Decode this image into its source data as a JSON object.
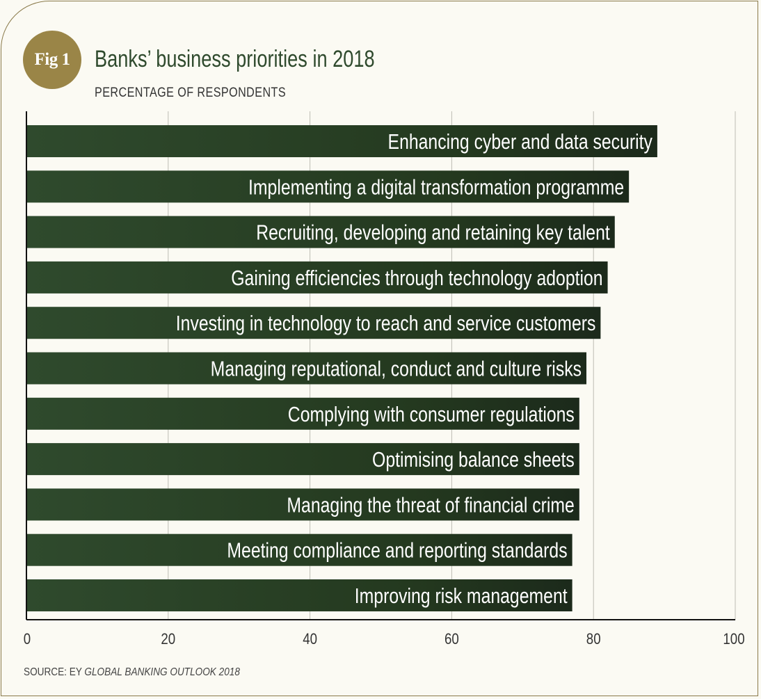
{
  "badge": {
    "label": "Fig 1"
  },
  "header": {
    "title": "Banks’ business priorities in 2018",
    "subtitle": "PERCENTAGE OF RESPONDENTS"
  },
  "source": {
    "prefix": "SOURCE: EY ",
    "publication": "GLOBAL BANKING OUTLOOK 2018"
  },
  "colors": {
    "bar_dark": "#1c2a1b",
    "bar_green": "#2f4a2d",
    "title_green": "#2f4a2d",
    "badge_gold": "#9a8547",
    "background": "#fbfaf3"
  },
  "chart_data": {
    "type": "bar",
    "orientation": "horizontal",
    "categories": [
      "Enhancing cyber and data security",
      "Implementing a digital transformation programme",
      "Recruiting, developing and retaining key talent",
      "Gaining efficiencies through technology adoption",
      "Investing in technology to reach and service customers",
      "Managing reputational, conduct and culture risks",
      "Complying with consumer regulations",
      "Optimising balance sheets",
      "Managing the threat of financial crime",
      "Meeting compliance and reporting standards",
      "Improving risk management"
    ],
    "values": [
      89,
      85,
      83,
      82,
      81,
      79,
      78,
      78,
      78,
      77,
      77
    ],
    "title": "Banks’ business priorities in 2018",
    "subtitle": "PERCENTAGE OF RESPONDENTS",
    "xlim": [
      0,
      100
    ],
    "xticks": [
      "0",
      "20",
      "40",
      "60",
      "80",
      "100"
    ],
    "grid": "vertical"
  }
}
